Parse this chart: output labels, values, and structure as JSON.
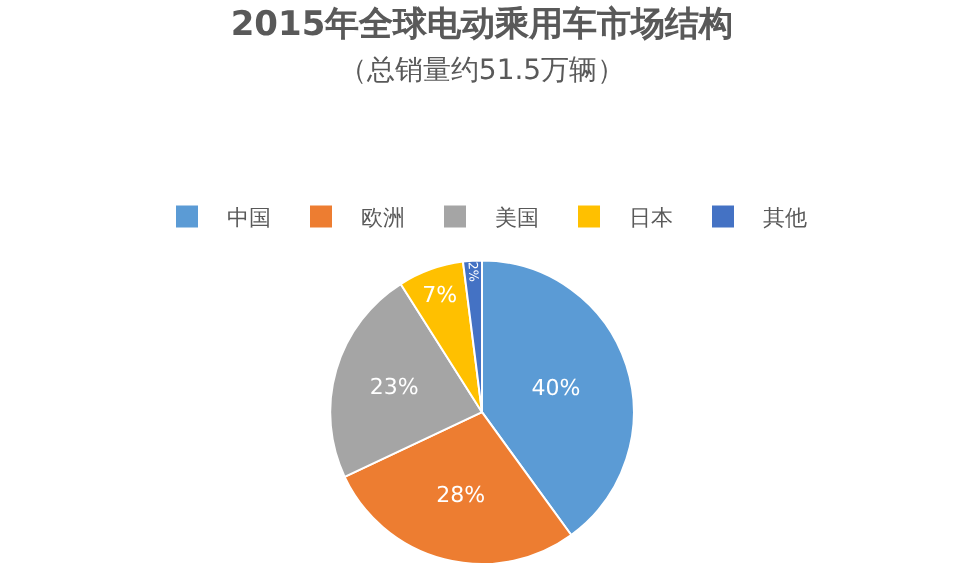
{
  "chart_data": {
    "type": "pie",
    "title": "2015年全球电动乘用车市场结构",
    "subtitle": "（总销量约51.5万辆）",
    "categories": [
      "中国",
      "欧洲",
      "美国",
      "日本",
      "其他"
    ],
    "values": [
      40,
      28,
      23,
      7,
      2
    ],
    "colors": [
      "#5b9bd5",
      "#ed7d31",
      "#a5a5a5",
      "#ffc000",
      "#4472c4"
    ],
    "value_labels": [
      "40%",
      "28%",
      "23%",
      "7%",
      "2%"
    ],
    "legend": "top"
  }
}
